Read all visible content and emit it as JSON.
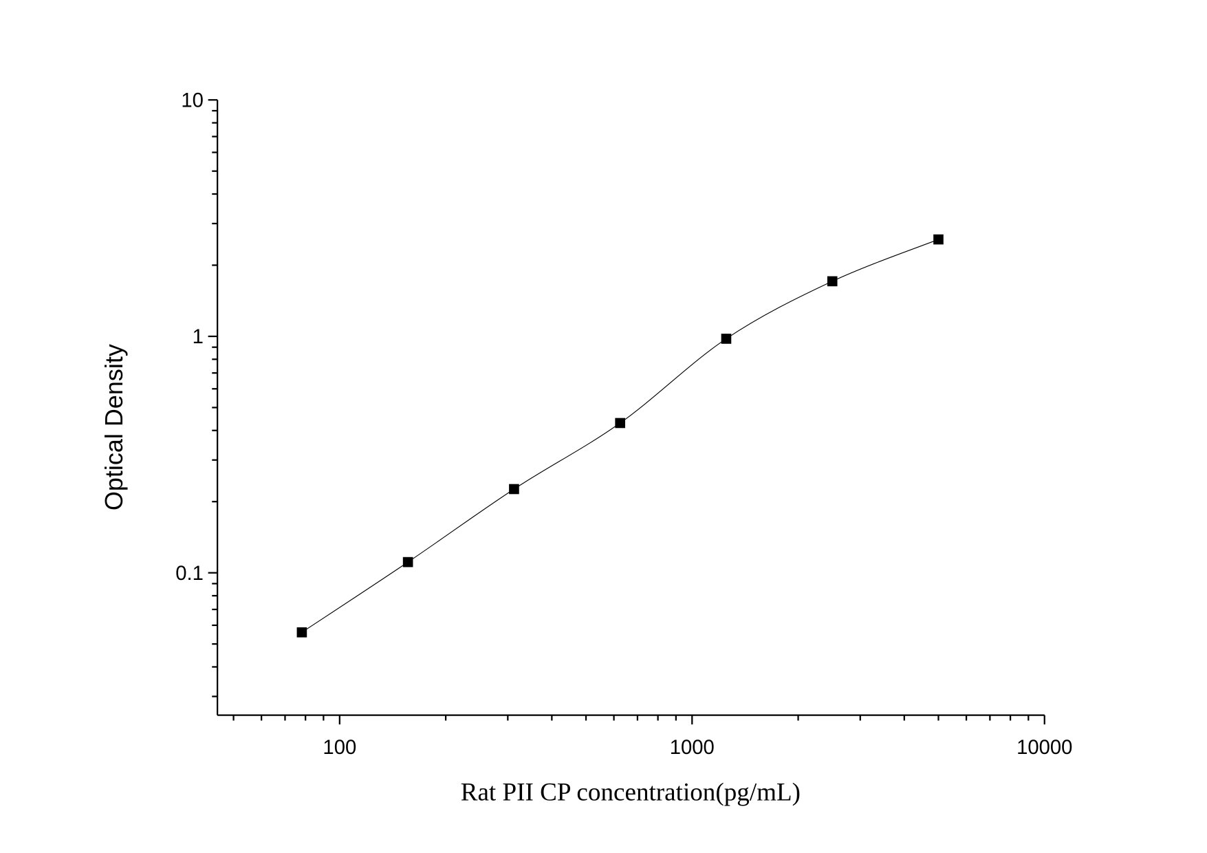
{
  "chart_data": {
    "type": "scatter",
    "title": "",
    "xlabel": "Rat PII CP concentration(pg/mL)",
    "ylabel": "Optical Density",
    "x_scale": "log",
    "y_scale": "log",
    "xlim": [
      45,
      10000
    ],
    "ylim": [
      0.025,
      10
    ],
    "x_ticks": [
      {
        "value": 100,
        "label": "100"
      },
      {
        "value": 1000,
        "label": "1000"
      },
      {
        "value": 10000,
        "label": "10000"
      }
    ],
    "y_ticks": [
      {
        "value": 0.1,
        "label": "0.1"
      },
      {
        "value": 1,
        "label": "1"
      },
      {
        "value": 10,
        "label": "10"
      }
    ],
    "grid": false,
    "legend": "none",
    "marker": "square",
    "fit_line": "smooth curve through points",
    "color": "#000000",
    "series": [
      {
        "x": [
          78.125,
          156.25,
          312.5,
          625,
          1250,
          2500,
          5000
        ],
        "y": [
          0.056,
          0.111,
          0.226,
          0.43,
          0.977,
          1.71,
          2.57
        ]
      }
    ]
  }
}
